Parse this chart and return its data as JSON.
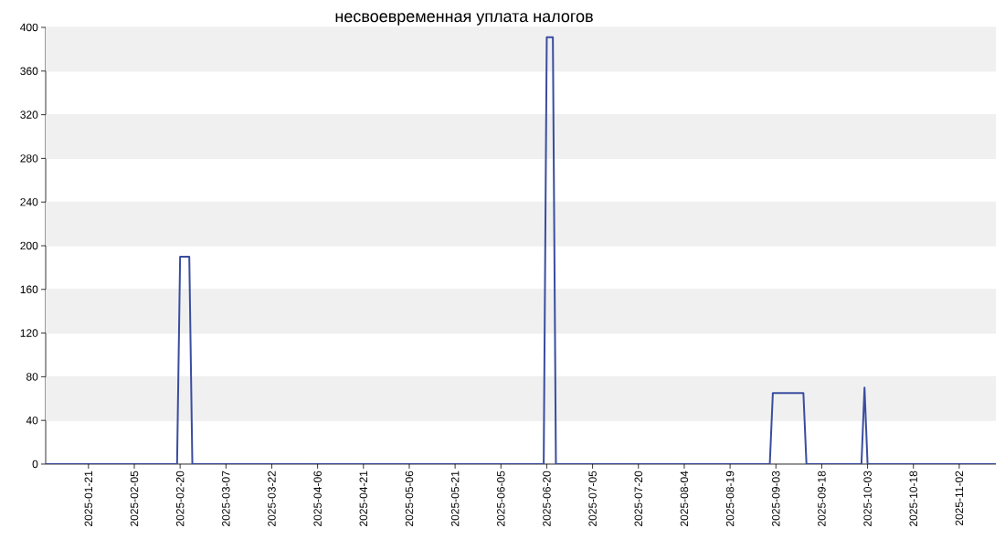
{
  "chart_data": {
    "type": "line",
    "title": "несвоевременная уплата налогов",
    "x": [
      "2025-01-07",
      "2025-02-19",
      "2025-02-20",
      "2025-02-23",
      "2025-02-24",
      "2025-06-19",
      "2025-06-20",
      "2025-06-22",
      "2025-06-23",
      "2025-09-01",
      "2025-09-02",
      "2025-09-12",
      "2025-09-13",
      "2025-10-01",
      "2025-10-02",
      "2025-10-03",
      "2025-11-14"
    ],
    "values": [
      0,
      0,
      190,
      190,
      0,
      0,
      391,
      391,
      0,
      0,
      65,
      65,
      0,
      0,
      70,
      0,
      0
    ],
    "color": "#3a4d9f",
    "xlim": [
      "2025-01-07",
      "2025-11-14"
    ],
    "xticks": [
      "2025-01-21",
      "2025-02-05",
      "2025-02-20",
      "2025-03-07",
      "2025-03-22",
      "2025-04-06",
      "2025-04-21",
      "2025-05-06",
      "2025-05-21",
      "2025-06-05",
      "2025-06-20",
      "2025-07-05",
      "2025-07-20",
      "2025-08-04",
      "2025-08-19",
      "2025-09-03",
      "2025-09-18",
      "2025-10-03",
      "2025-10-18",
      "2025-11-02"
    ],
    "ylim": [
      0,
      400
    ],
    "yticks": [
      0,
      40,
      80,
      120,
      160,
      200,
      240,
      280,
      320,
      360,
      400
    ],
    "grid": "y",
    "line_style": "solid"
  }
}
